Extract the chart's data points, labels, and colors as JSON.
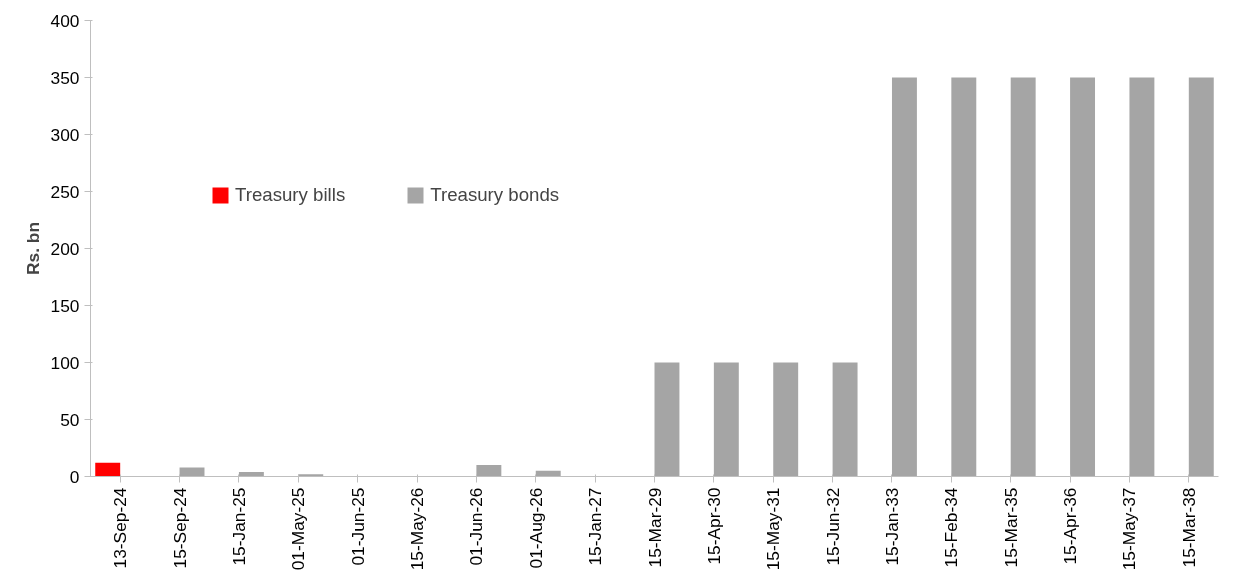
{
  "chart_data": {
    "type": "bar",
    "ylabel": "Rs. bn",
    "categories": [
      "13-Sep-24",
      "15-Sep-24",
      "15-Jan-25",
      "01-May-25",
      "01-Jun-25",
      "15-May-26",
      "01-Jun-26",
      "01-Aug-26",
      "15-Jan-27",
      "15-Mar-29",
      "15-Apr-30",
      "15-May-31",
      "15-Jun-32",
      "15-Jan-33",
      "15-Feb-34",
      "15-Mar-35",
      "15-Apr-36",
      "15-May-37",
      "15-Mar-38"
    ],
    "series": [
      {
        "name": "Treasury bills",
        "color": "#ff0000",
        "values": [
          12,
          null,
          null,
          null,
          null,
          null,
          null,
          null,
          null,
          null,
          null,
          null,
          null,
          null,
          null,
          null,
          null,
          null,
          null
        ]
      },
      {
        "name": "Treasury bonds",
        "color": "#a5a5a5",
        "values": [
          null,
          8,
          4,
          2,
          0,
          0,
          10,
          5,
          0,
          100,
          100,
          100,
          100,
          350,
          350,
          350,
          350,
          350,
          350
        ]
      }
    ],
    "ylim": [
      0,
      400
    ],
    "yticks": [
      0,
      50,
      100,
      150,
      200,
      250,
      300,
      350,
      400
    ],
    "grid": false,
    "legend": "top"
  }
}
